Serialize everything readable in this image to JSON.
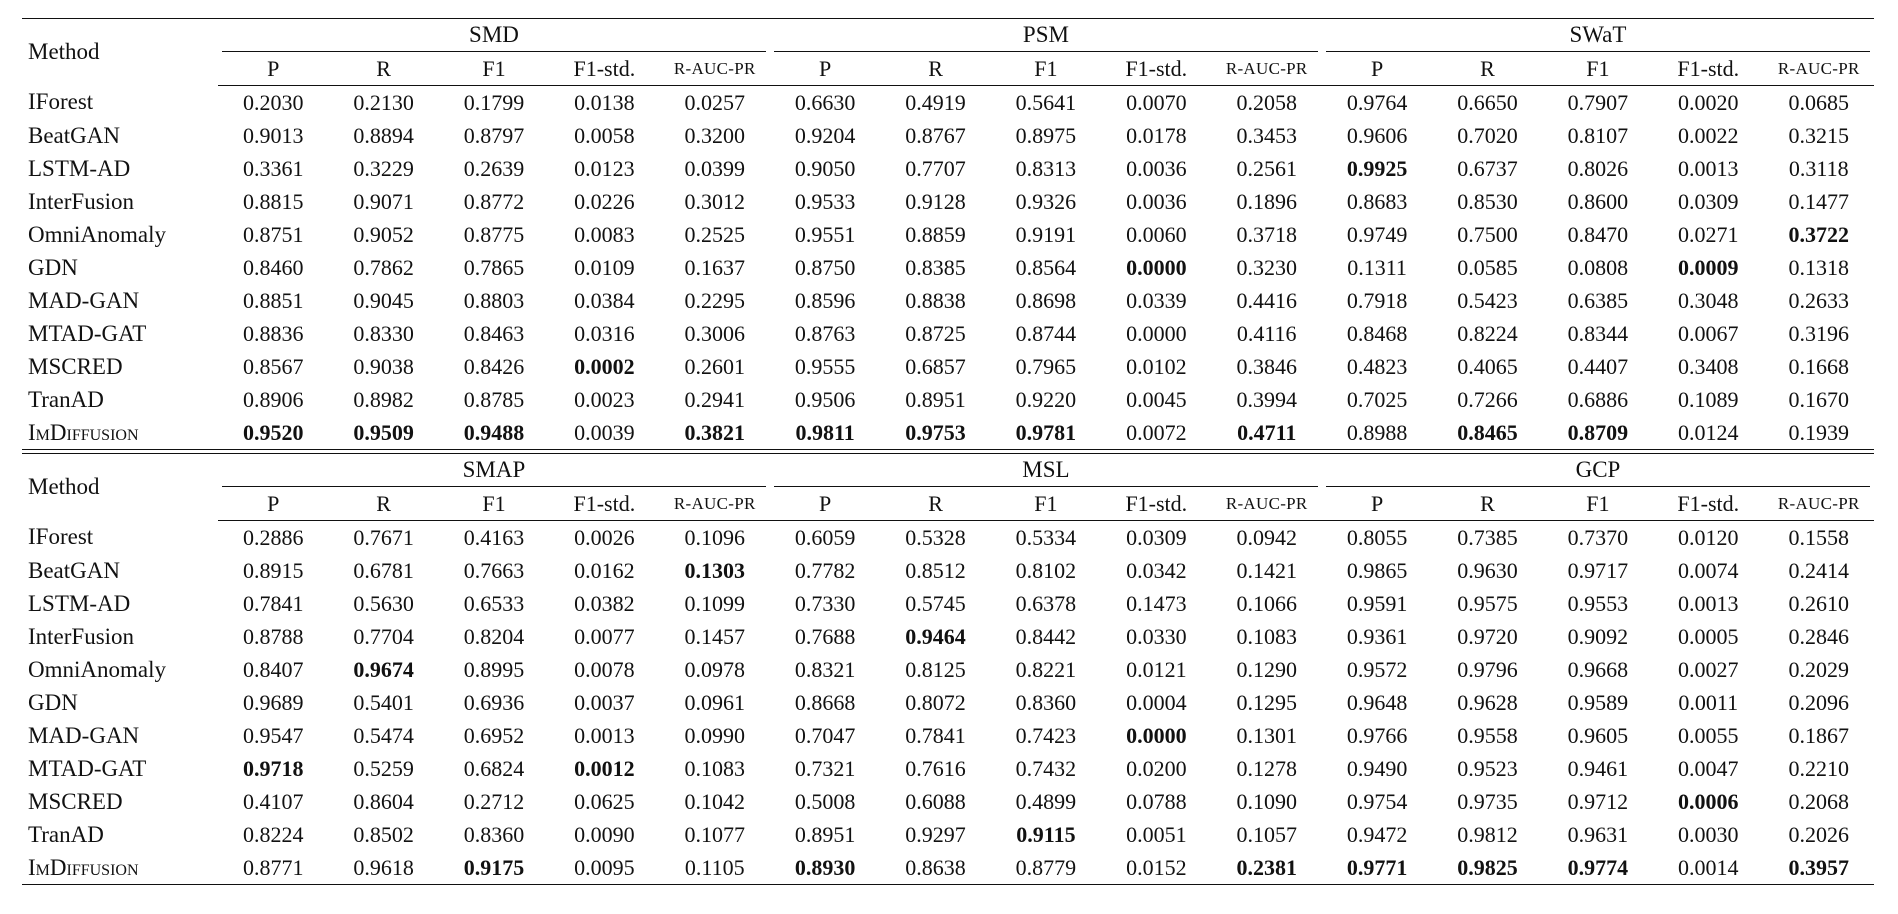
{
  "tables": [
    {
      "method_header": "Method",
      "datasets": [
        "SMD",
        "PSM",
        "SWaT"
      ],
      "metrics": [
        "P",
        "R",
        "F1",
        "F1-std.",
        "R-AUC-PR"
      ],
      "rows": [
        {
          "method": "IForest",
          "values": [
            "0.2030",
            "0.2130",
            "0.1799",
            "0.0138",
            "0.0257",
            "0.6630",
            "0.4919",
            "0.5641",
            "0.0070",
            "0.2058",
            "0.9764",
            "0.6650",
            "0.7907",
            "0.0020",
            "0.0685"
          ],
          "bold": []
        },
        {
          "method": "BeatGAN",
          "values": [
            "0.9013",
            "0.8894",
            "0.8797",
            "0.0058",
            "0.3200",
            "0.9204",
            "0.8767",
            "0.8975",
            "0.0178",
            "0.3453",
            "0.9606",
            "0.7020",
            "0.8107",
            "0.0022",
            "0.3215"
          ],
          "bold": []
        },
        {
          "method": "LSTM-AD",
          "values": [
            "0.3361",
            "0.3229",
            "0.2639",
            "0.0123",
            "0.0399",
            "0.9050",
            "0.7707",
            "0.8313",
            "0.0036",
            "0.2561",
            "0.9925",
            "0.6737",
            "0.8026",
            "0.0013",
            "0.3118"
          ],
          "bold": [
            10
          ]
        },
        {
          "method": "InterFusion",
          "values": [
            "0.8815",
            "0.9071",
            "0.8772",
            "0.0226",
            "0.3012",
            "0.9533",
            "0.9128",
            "0.9326",
            "0.0036",
            "0.1896",
            "0.8683",
            "0.8530",
            "0.8600",
            "0.0309",
            "0.1477"
          ],
          "bold": []
        },
        {
          "method": "OmniAnomaly",
          "values": [
            "0.8751",
            "0.9052",
            "0.8775",
            "0.0083",
            "0.2525",
            "0.9551",
            "0.8859",
            "0.9191",
            "0.0060",
            "0.3718",
            "0.9749",
            "0.7500",
            "0.8470",
            "0.0271",
            "0.3722"
          ],
          "bold": [
            14
          ]
        },
        {
          "method": "GDN",
          "values": [
            "0.8460",
            "0.7862",
            "0.7865",
            "0.0109",
            "0.1637",
            "0.8750",
            "0.8385",
            "0.8564",
            "0.0000",
            "0.3230",
            "0.1311",
            "0.0585",
            "0.0808",
            "0.0009",
            "0.1318"
          ],
          "bold": [
            8,
            13
          ]
        },
        {
          "method": "MAD-GAN",
          "values": [
            "0.8851",
            "0.9045",
            "0.8803",
            "0.0384",
            "0.2295",
            "0.8596",
            "0.8838",
            "0.8698",
            "0.0339",
            "0.4416",
            "0.7918",
            "0.5423",
            "0.6385",
            "0.3048",
            "0.2633"
          ],
          "bold": []
        },
        {
          "method": "MTAD-GAT",
          "values": [
            "0.8836",
            "0.8330",
            "0.8463",
            "0.0316",
            "0.3006",
            "0.8763",
            "0.8725",
            "0.8744",
            "0.0000",
            "0.4116",
            "0.8468",
            "0.8224",
            "0.8344",
            "0.0067",
            "0.3196"
          ],
          "bold": []
        },
        {
          "method": "MSCRED",
          "values": [
            "0.8567",
            "0.9038",
            "0.8426",
            "0.0002",
            "0.2601",
            "0.9555",
            "0.6857",
            "0.7965",
            "0.0102",
            "0.3846",
            "0.4823",
            "0.4065",
            "0.4407",
            "0.3408",
            "0.1668"
          ],
          "bold": [
            3
          ]
        },
        {
          "method": "TranAD",
          "values": [
            "0.8906",
            "0.8982",
            "0.8785",
            "0.0023",
            "0.2941",
            "0.9506",
            "0.8951",
            "0.9220",
            "0.0045",
            "0.3994",
            "0.7025",
            "0.7266",
            "0.6886",
            "0.1089",
            "0.1670"
          ],
          "bold": []
        },
        {
          "method": "ImDiffusion",
          "values": [
            "0.9520",
            "0.9509",
            "0.9488",
            "0.0039",
            "0.3821",
            "0.9811",
            "0.9753",
            "0.9781",
            "0.0072",
            "0.4711",
            "0.8988",
            "0.8465",
            "0.8709",
            "0.0124",
            "0.1939"
          ],
          "bold": [
            0,
            1,
            2,
            4,
            5,
            6,
            7,
            9,
            11,
            12
          ],
          "small_caps": true
        }
      ]
    },
    {
      "method_header": "Method",
      "datasets": [
        "SMAP",
        "MSL",
        "GCP"
      ],
      "metrics": [
        "P",
        "R",
        "F1",
        "F1-std.",
        "R-AUC-PR"
      ],
      "rows": [
        {
          "method": "IForest",
          "values": [
            "0.2886",
            "0.7671",
            "0.4163",
            "0.0026",
            "0.1096",
            "0.6059",
            "0.5328",
            "0.5334",
            "0.0309",
            "0.0942",
            "0.8055",
            "0.7385",
            "0.7370",
            "0.0120",
            "0.1558"
          ],
          "bold": []
        },
        {
          "method": "BeatGAN",
          "values": [
            "0.8915",
            "0.6781",
            "0.7663",
            "0.0162",
            "0.1303",
            "0.7782",
            "0.8512",
            "0.8102",
            "0.0342",
            "0.1421",
            "0.9865",
            "0.9630",
            "0.9717",
            "0.0074",
            "0.2414"
          ],
          "bold": [
            4
          ]
        },
        {
          "method": "LSTM-AD",
          "values": [
            "0.7841",
            "0.5630",
            "0.6533",
            "0.0382",
            "0.1099",
            "0.7330",
            "0.5745",
            "0.6378",
            "0.1473",
            "0.1066",
            "0.9591",
            "0.9575",
            "0.9553",
            "0.0013",
            "0.2610"
          ],
          "bold": []
        },
        {
          "method": "InterFusion",
          "values": [
            "0.8788",
            "0.7704",
            "0.8204",
            "0.0077",
            "0.1457",
            "0.7688",
            "0.9464",
            "0.8442",
            "0.0330",
            "0.1083",
            "0.9361",
            "0.9720",
            "0.9092",
            "0.0005",
            "0.2846"
          ],
          "bold": [
            6
          ]
        },
        {
          "method": "OmniAnomaly",
          "values": [
            "0.8407",
            "0.9674",
            "0.8995",
            "0.0078",
            "0.0978",
            "0.8321",
            "0.8125",
            "0.8221",
            "0.0121",
            "0.1290",
            "0.9572",
            "0.9796",
            "0.9668",
            "0.0027",
            "0.2029"
          ],
          "bold": [
            1
          ]
        },
        {
          "method": "GDN",
          "values": [
            "0.9689",
            "0.5401",
            "0.6936",
            "0.0037",
            "0.0961",
            "0.8668",
            "0.8072",
            "0.8360",
            "0.0004",
            "0.1295",
            "0.9648",
            "0.9628",
            "0.9589",
            "0.0011",
            "0.2096"
          ],
          "bold": []
        },
        {
          "method": "MAD-GAN",
          "values": [
            "0.9547",
            "0.5474",
            "0.6952",
            "0.0013",
            "0.0990",
            "0.7047",
            "0.7841",
            "0.7423",
            "0.0000",
            "0.1301",
            "0.9766",
            "0.9558",
            "0.9605",
            "0.0055",
            "0.1867"
          ],
          "bold": [
            8
          ]
        },
        {
          "method": "MTAD-GAT",
          "values": [
            "0.9718",
            "0.5259",
            "0.6824",
            "0.0012",
            "0.1083",
            "0.7321",
            "0.7616",
            "0.7432",
            "0.0200",
            "0.1278",
            "0.9490",
            "0.9523",
            "0.9461",
            "0.0047",
            "0.2210"
          ],
          "bold": [
            0,
            3
          ]
        },
        {
          "method": "MSCRED",
          "values": [
            "0.4107",
            "0.8604",
            "0.2712",
            "0.0625",
            "0.1042",
            "0.5008",
            "0.6088",
            "0.4899",
            "0.0788",
            "0.1090",
            "0.9754",
            "0.9735",
            "0.9712",
            "0.0006",
            "0.2068"
          ],
          "bold": [
            13
          ]
        },
        {
          "method": "TranAD",
          "values": [
            "0.8224",
            "0.8502",
            "0.8360",
            "0.0090",
            "0.1077",
            "0.8951",
            "0.9297",
            "0.9115",
            "0.0051",
            "0.1057",
            "0.9472",
            "0.9812",
            "0.9631",
            "0.0030",
            "0.2026"
          ],
          "bold": [
            7
          ]
        },
        {
          "method": "ImDiffusion",
          "values": [
            "0.8771",
            "0.9618",
            "0.9175",
            "0.0095",
            "0.1105",
            "0.8930",
            "0.8638",
            "0.8779",
            "0.0152",
            "0.2381",
            "0.9771",
            "0.9825",
            "0.9774",
            "0.0014",
            "0.3957"
          ],
          "bold": [
            2,
            5,
            9,
            10,
            11,
            12,
            14
          ],
          "small_caps": true
        }
      ]
    }
  ]
}
